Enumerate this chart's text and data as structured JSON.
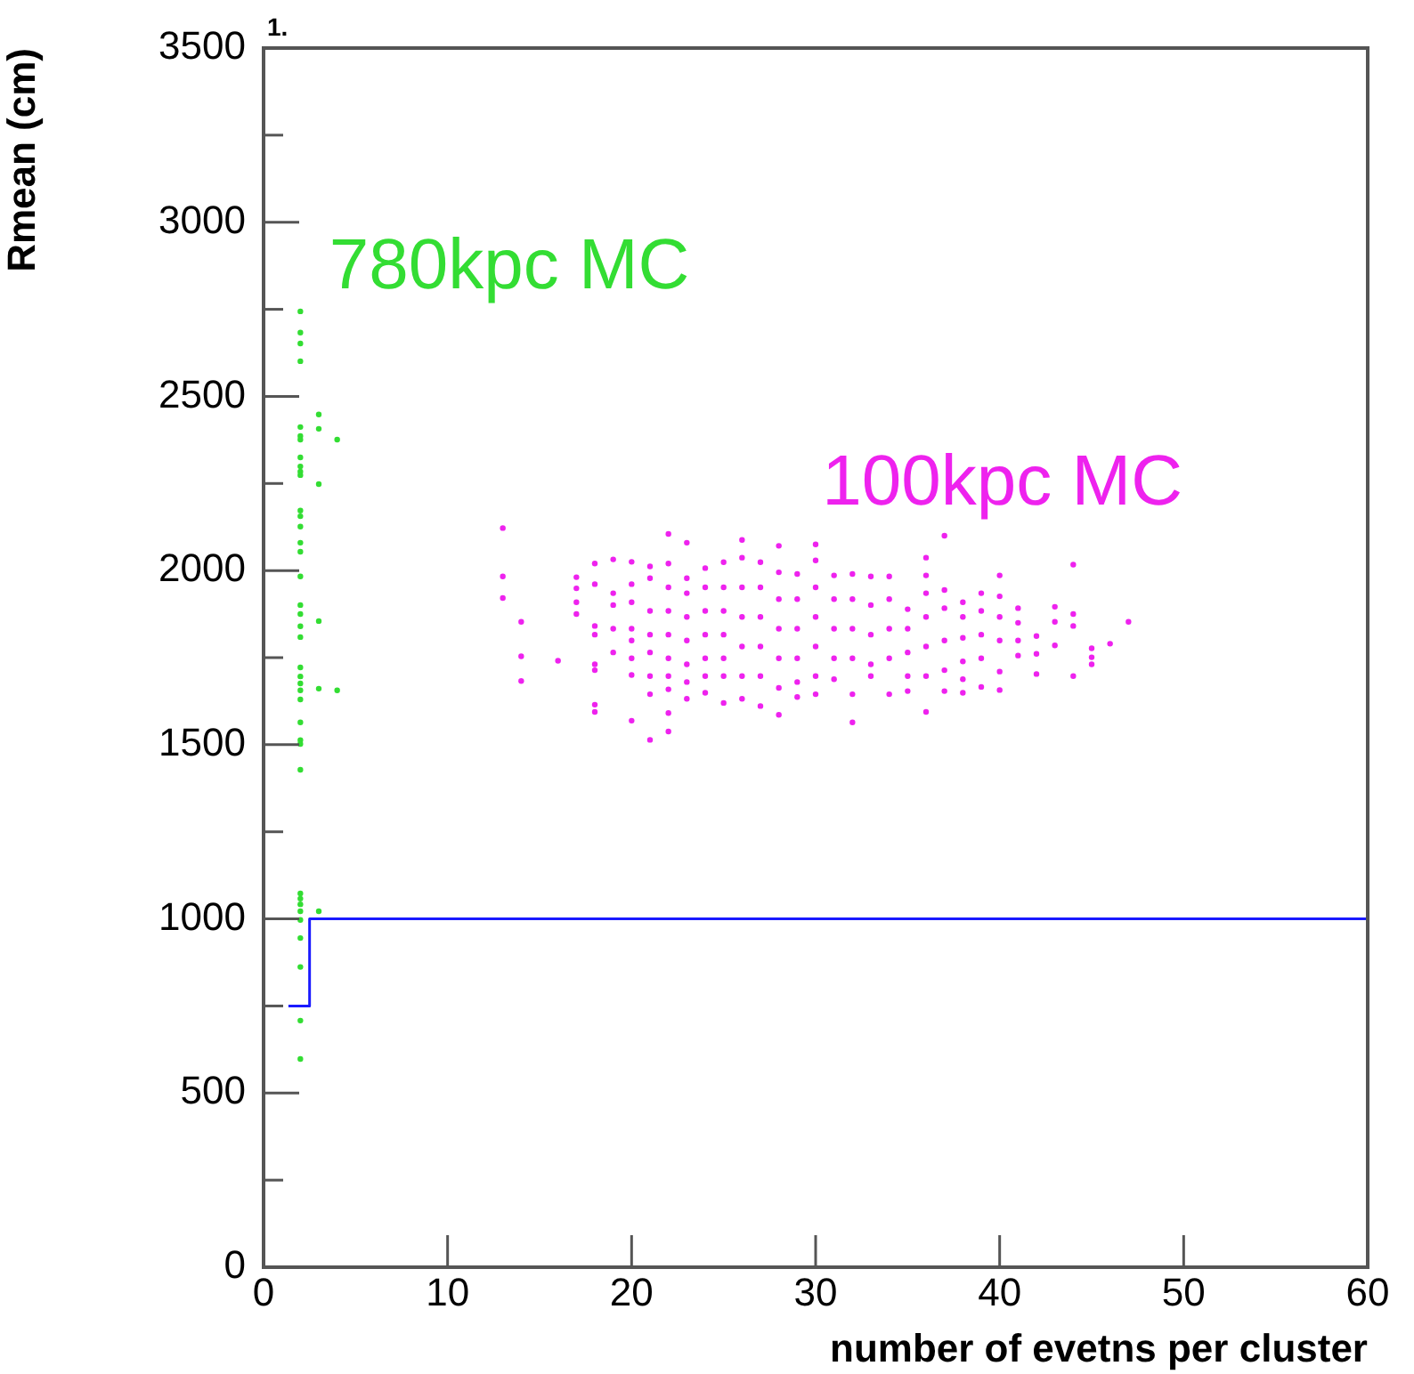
{
  "chart_data": {
    "type": "scatter",
    "xlabel": "number of evetns per cluster",
    "ylabel": "Rmean (cm)",
    "xlim": [
      0,
      60
    ],
    "xticks": [
      0,
      10,
      20,
      30,
      40,
      50,
      60
    ],
    "ylim": [
      0,
      3500
    ],
    "yticks": [
      0,
      {
        "value": 250,
        "label": null
      },
      500,
      {
        "value": 750,
        "label": null
      },
      1000,
      {
        "value": 1250,
        "label": null
      },
      1500,
      {
        "value": 1750,
        "label": null
      },
      2000,
      {
        "value": 2250,
        "label": null
      },
      2500,
      {
        "value": 2750,
        "label": null
      },
      3000,
      {
        "value": 3250,
        "label": null
      },
      3500
    ],
    "grid": false,
    "legend": false,
    "marker": "circle",
    "annotations": [
      "1."
    ],
    "series": [
      {
        "name": "780kpc MC",
        "color": "#33dd33",
        "x": [
          2,
          2,
          2,
          2,
          2,
          2,
          2,
          2,
          2,
          2,
          2,
          2,
          2,
          2,
          2,
          2,
          2,
          2,
          2,
          2,
          2,
          2,
          2,
          2,
          2,
          2,
          2,
          2,
          2,
          2,
          2,
          2,
          2,
          2,
          2,
          2,
          2,
          2,
          2,
          3,
          3,
          3,
          3,
          3,
          3,
          4,
          4
        ],
        "values": [
          2744,
          2683,
          2652,
          2601,
          2412,
          2386,
          2376,
          2325,
          2299,
          2284,
          2274,
          2172,
          2156,
          2126,
          2080,
          2054,
          1983,
          1901,
          1875,
          1840,
          1809,
          1722,
          1696,
          1676,
          1656,
          1630,
          1564,
          1513,
          1502,
          1428,
          1073,
          1058,
          1042,
          1022,
          997,
          945,
          862,
          708,
          598,
          2448,
          2407,
          2248,
          1855,
          1661,
          1022,
          2376,
          1656
        ]
      },
      {
        "name": "100kpc MC",
        "color": "#ee22ee",
        "x": [
          13,
          13,
          13,
          14,
          14,
          14,
          16,
          17,
          17,
          17,
          17,
          18,
          18,
          18,
          18,
          18,
          18,
          18,
          18,
          19,
          19,
          19,
          19,
          19,
          20,
          20,
          20,
          20,
          20,
          20,
          20,
          20,
          21,
          21,
          21,
          21,
          21,
          21,
          21,
          21,
          22,
          22,
          22,
          22,
          22,
          22,
          22,
          22,
          22,
          22,
          23,
          23,
          23,
          23,
          23,
          23,
          23,
          23,
          24,
          24,
          24,
          24,
          24,
          24,
          24,
          25,
          25,
          25,
          25,
          25,
          25,
          25,
          26,
          26,
          26,
          26,
          26,
          26,
          26,
          27,
          27,
          27,
          27,
          27,
          27,
          28,
          28,
          28,
          28,
          28,
          28,
          28,
          29,
          29,
          29,
          29,
          29,
          29,
          30,
          30,
          30,
          30,
          30,
          30,
          30,
          31,
          31,
          31,
          31,
          31,
          32,
          32,
          32,
          32,
          32,
          32,
          33,
          33,
          33,
          33,
          33,
          34,
          34,
          34,
          34,
          34,
          35,
          35,
          35,
          35,
          35,
          36,
          36,
          36,
          36,
          36,
          36,
          36,
          37,
          37,
          37,
          37,
          37,
          37,
          38,
          38,
          38,
          38,
          38,
          38,
          39,
          39,
          39,
          39,
          39,
          40,
          40,
          40,
          40,
          40,
          40,
          41,
          41,
          41,
          41,
          42,
          42,
          42,
          43,
          43,
          43,
          44,
          44,
          44,
          44,
          45,
          45,
          45,
          46,
          47
        ],
        "values": [
          2122,
          1983,
          1921,
          1853,
          1754,
          1683,
          1741,
          1981,
          1949,
          1909,
          1875,
          2020,
          1961,
          1841,
          1816,
          1731,
          1714,
          1615,
          1594,
          2032,
          1935,
          1901,
          1833,
          1765,
          2025,
          1961,
          1909,
          1833,
          1799,
          1748,
          1700,
          1569,
          2012,
          1978,
          1884,
          1816,
          1765,
          1697,
          1645,
          1514,
          2105,
          2020,
          1952,
          1884,
          1816,
          1748,
          1697,
          1659,
          1591,
          1538,
          2080,
          1978,
          1935,
          1867,
          1799,
          1731,
          1680,
          1632,
          2007,
          1952,
          1884,
          1816,
          1748,
          1697,
          1649,
          2024,
          1952,
          1884,
          1816,
          1748,
          1697,
          1620,
          2088,
          2037,
          1952,
          1867,
          1782,
          1697,
          1632,
          2024,
          1952,
          1867,
          1782,
          1697,
          1611,
          2071,
          1995,
          1918,
          1833,
          1748,
          1663,
          1586,
          1990,
          1918,
          1833,
          1748,
          1680,
          1637,
          2075,
          2029,
          1952,
          1867,
          1782,
          1697,
          1645,
          1986,
          1918,
          1833,
          1748,
          1688,
          1990,
          1918,
          1833,
          1748,
          1645,
          1564,
          1983,
          1901,
          1816,
          1731,
          1697,
          1983,
          1918,
          1833,
          1748,
          1645,
          1889,
          1833,
          1765,
          1697,
          1654,
          2037,
          1986,
          1935,
          1867,
          1782,
          1697,
          1594,
          2100,
          1944,
          1892,
          1799,
          1714,
          1654,
          1909,
          1867,
          1807,
          1739,
          1688,
          1649,
          1935,
          1884,
          1816,
          1748,
          1666,
          1986,
          1926,
          1867,
          1799,
          1710,
          1657,
          1892,
          1850,
          1799,
          1756,
          1812,
          1761,
          1703,
          1896,
          1853,
          1785,
          2017,
          1875,
          1841,
          1697,
          1777,
          1751,
          1731,
          1790,
          1853
        ]
      },
      {
        "type": "step",
        "color": "#1a1aff",
        "marker": "none",
        "x": [
          1.35,
          2.5,
          60
        ],
        "values": [
          750,
          1000,
          1000
        ]
      }
    ]
  }
}
